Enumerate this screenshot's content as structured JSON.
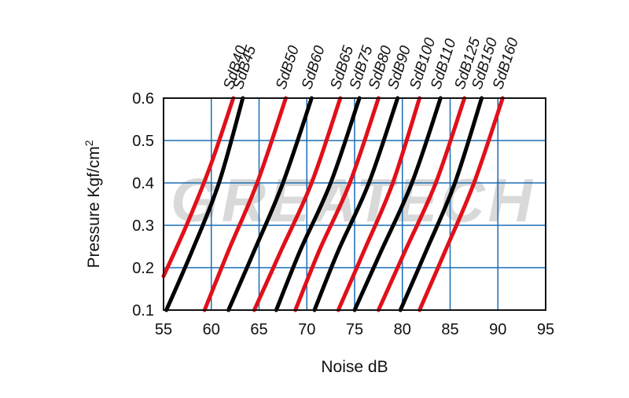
{
  "watermark": "GREATECH",
  "chart_data": {
    "type": "line",
    "title": "",
    "xlabel": "Noise  dB",
    "ylabel": "Pressure  Kgf/cm",
    "ylabel_superscript": "2",
    "xlim": [
      55,
      95
    ],
    "ylim": [
      0.1,
      0.6
    ],
    "x_ticks": [
      "55",
      "60",
      "65",
      "70",
      "75",
      "80",
      "85",
      "90",
      "95"
    ],
    "y_ticks": [
      "0.1",
      "0.2",
      "0.3",
      "0.4",
      "0.5",
      "0.6"
    ],
    "grid": true,
    "grid_color": "#1a6fb5",
    "series": [
      {
        "name": "SdB40",
        "color": "#e0101a",
        "points": [
          [
            55.0,
            0.18
          ],
          [
            57.4,
            0.3
          ],
          [
            59.9,
            0.44
          ],
          [
            62.3,
            0.6
          ]
        ]
      },
      {
        "name": "SdB45",
        "color": "#000000",
        "points": [
          [
            55.3,
            0.1
          ],
          [
            58.0,
            0.24
          ],
          [
            60.8,
            0.4
          ],
          [
            63.3,
            0.6
          ]
        ]
      },
      {
        "name": "SdB50",
        "color": "#e0101a",
        "points": [
          [
            59.3,
            0.1
          ],
          [
            61.8,
            0.24
          ],
          [
            64.8,
            0.4
          ],
          [
            67.8,
            0.6
          ]
        ]
      },
      {
        "name": "SdB60",
        "color": "#000000",
        "points": [
          [
            61.8,
            0.1
          ],
          [
            64.5,
            0.24
          ],
          [
            67.5,
            0.4
          ],
          [
            70.5,
            0.6
          ]
        ]
      },
      {
        "name": "SdB65",
        "color": "#e0101a",
        "points": [
          [
            64.5,
            0.1
          ],
          [
            67.3,
            0.24
          ],
          [
            70.5,
            0.4
          ],
          [
            73.5,
            0.6
          ]
        ]
      },
      {
        "name": "SdB75",
        "color": "#000000",
        "points": [
          [
            66.8,
            0.1
          ],
          [
            69.3,
            0.24
          ],
          [
            72.5,
            0.4
          ],
          [
            75.5,
            0.6
          ]
        ]
      },
      {
        "name": "SdB80",
        "color": "#e0101a",
        "points": [
          [
            68.8,
            0.1
          ],
          [
            71.3,
            0.24
          ],
          [
            74.5,
            0.4
          ],
          [
            77.5,
            0.6
          ]
        ]
      },
      {
        "name": "SdB90",
        "color": "#000000",
        "points": [
          [
            70.8,
            0.1
          ],
          [
            73.3,
            0.24
          ],
          [
            76.5,
            0.4
          ],
          [
            79.5,
            0.6
          ]
        ]
      },
      {
        "name": "SdB100",
        "color": "#e0101a",
        "points": [
          [
            73.3,
            0.1
          ],
          [
            76.0,
            0.24
          ],
          [
            79.0,
            0.4
          ],
          [
            81.8,
            0.6
          ]
        ]
      },
      {
        "name": "SdB110",
        "color": "#000000",
        "points": [
          [
            75.0,
            0.1
          ],
          [
            77.8,
            0.24
          ],
          [
            81.0,
            0.4
          ],
          [
            84.0,
            0.6
          ]
        ]
      },
      {
        "name": "SdB125",
        "color": "#e0101a",
        "points": [
          [
            77.5,
            0.1
          ],
          [
            80.3,
            0.24
          ],
          [
            83.5,
            0.4
          ],
          [
            86.5,
            0.6
          ]
        ]
      },
      {
        "name": "SdB150",
        "color": "#000000",
        "points": [
          [
            79.8,
            0.1
          ],
          [
            82.5,
            0.24
          ],
          [
            85.5,
            0.4
          ],
          [
            88.3,
            0.6
          ]
        ]
      },
      {
        "name": "SdB160",
        "color": "#e0101a",
        "points": [
          [
            81.8,
            0.1
          ],
          [
            84.5,
            0.24
          ],
          [
            87.5,
            0.4
          ],
          [
            90.5,
            0.6
          ]
        ]
      }
    ]
  }
}
